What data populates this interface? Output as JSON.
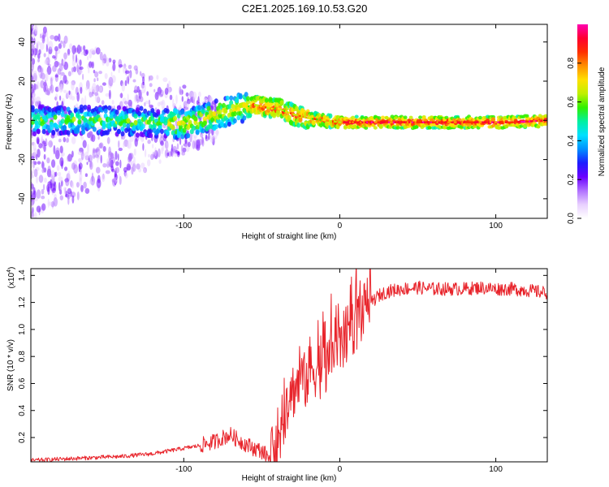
{
  "figure_title": "C2E1.2025.169.10.53.G20",
  "chart_data": [
    {
      "type": "heatmap",
      "title": "C2E1.2025.169.10.53.G20",
      "xlabel": "Height of straight line (km)",
      "ylabel": "Frequency (Hz)",
      "xlim": [
        -198,
        133
      ],
      "ylim": [
        -50,
        49
      ],
      "xticks": [
        -100,
        0,
        100
      ],
      "yticks": [
        40,
        20,
        0,
        -20,
        -40
      ],
      "colorbar": {
        "label": "Normalized spectral amplitude",
        "range": [
          0,
          1
        ],
        "ticks": [
          0.0,
          0.2,
          0.4,
          0.6,
          0.8
        ],
        "colors": [
          "#ffffff",
          "#e8d0ff",
          "#b070ff",
          "#6a00ff",
          "#1c1cff",
          "#0090ff",
          "#00e0ff",
          "#00f0a0",
          "#30f000",
          "#c0f000",
          "#ffe000",
          "#ff9000",
          "#ff3000",
          "#ff0030",
          "#ff00b0"
        ]
      },
      "ridge": {
        "x": [
          -195,
          -150,
          -120,
          -100,
          -90,
          -80,
          -70,
          -60,
          -55,
          -50,
          -45,
          -40,
          -30,
          -20,
          -10,
          0,
          20,
          50,
          80,
          110,
          133
        ],
        "frequency": [
          0,
          0,
          -1,
          -2,
          0,
          3,
          5,
          7,
          8,
          7,
          6,
          6,
          3,
          1,
          0,
          -1,
          -1,
          -1,
          -1,
          -1,
          0
        ]
      }
    },
    {
      "type": "line",
      "xlabel": "Height of straight line (km)",
      "ylabel": "SNR (10 * v/v)",
      "y_scale_label": "(x10",
      "y_scale_exponent": "4",
      "xlim": [
        -198,
        133
      ],
      "ylim": [
        0.02,
        1.45
      ],
      "xticks": [
        -100,
        0,
        100
      ],
      "yticks": [
        1.4,
        1.2,
        1.0,
        0.8,
        0.6,
        0.4,
        0.2
      ],
      "series": [
        {
          "name": "SNR",
          "color": "#e8242b",
          "x": [
            -198,
            -180,
            -160,
            -140,
            -120,
            -100,
            -90,
            -80,
            -75,
            -70,
            -65,
            -60,
            -55,
            -50,
            -45,
            -40,
            -37,
            -34,
            -30,
            -26,
            -22,
            -18,
            -14,
            -10,
            -5,
            0,
            5,
            10,
            15,
            20,
            25,
            30,
            40,
            50,
            60,
            70,
            80,
            90,
            100,
            110,
            120,
            133
          ],
          "values": [
            0.03,
            0.04,
            0.05,
            0.06,
            0.08,
            0.12,
            0.14,
            0.17,
            0.2,
            0.22,
            0.18,
            0.15,
            0.12,
            0.1,
            0.05,
            0.08,
            0.3,
            0.45,
            0.55,
            0.6,
            0.62,
            0.7,
            0.72,
            0.68,
            0.8,
            0.88,
            0.96,
            1.05,
            1.12,
            1.2,
            1.25,
            1.28,
            1.3,
            1.31,
            1.3,
            1.3,
            1.3,
            1.31,
            1.3,
            1.3,
            1.29,
            1.27
          ]
        }
      ]
    }
  ]
}
